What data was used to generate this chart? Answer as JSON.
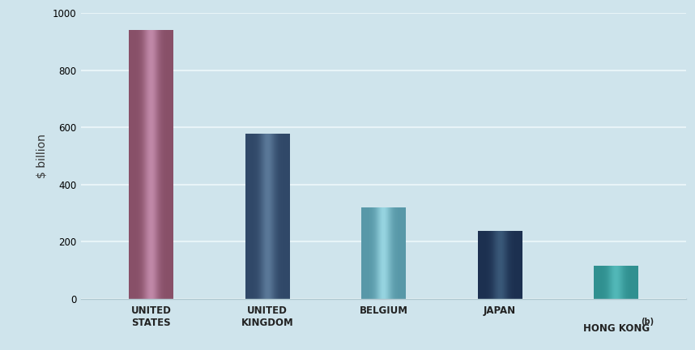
{
  "xtick_labels": [
    "UNITED\nSTATES",
    "UNITED\nKINGDOM",
    "BELGIUM",
    "JAPAN",
    "HONG KONG"
  ],
  "values": [
    940,
    578,
    320,
    237,
    115
  ],
  "bar_colors_center": [
    "#c088a8",
    "#5a7898",
    "#96d4e0",
    "#3a5878",
    "#52b8b8"
  ],
  "bar_colors_edge": [
    "#885068",
    "#304868",
    "#5898a8",
    "#1c3050",
    "#309090"
  ],
  "ylabel": "$ billion",
  "ylim": [
    0,
    1000
  ],
  "yticks": [
    0,
    200,
    400,
    600,
    800,
    1000
  ],
  "background_color": "#cfe4ec",
  "grid_color": "#e8f4f8",
  "ylabel_fontsize": 10,
  "tick_fontsize": 8.5,
  "bar_width": 0.38
}
